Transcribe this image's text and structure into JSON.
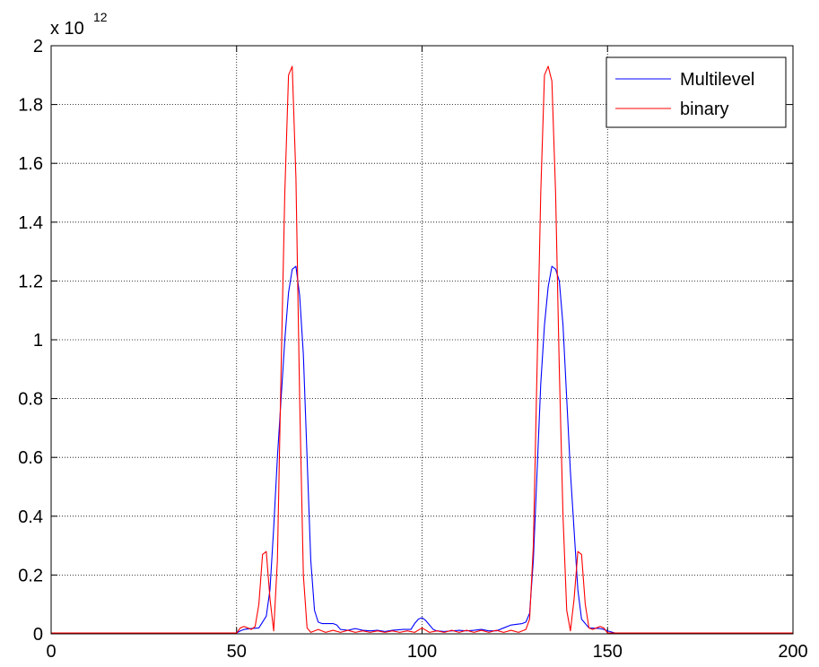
{
  "chart_data": {
    "type": "line",
    "title": "",
    "xlabel": "",
    "ylabel": "",
    "xlim": [
      0,
      200
    ],
    "ylim": [
      0,
      2
    ],
    "y_multiplier": {
      "base": "x 10",
      "exponent": "12"
    },
    "x_ticks": [
      "0",
      "50",
      "100",
      "150",
      "200"
    ],
    "x_tick_values": [
      0,
      50,
      100,
      150,
      200
    ],
    "y_ticks": [
      "0",
      "0.2",
      "0.4",
      "0.6",
      "0.8",
      "1",
      "1.2",
      "1.4",
      "1.6",
      "1.8",
      "2"
    ],
    "y_tick_values": [
      0,
      0.2,
      0.4,
      0.6,
      0.8,
      1,
      1.2,
      1.4,
      1.6,
      1.8,
      2
    ],
    "grid": true,
    "legend_position": "top-right",
    "series": [
      {
        "name": "Multilevel",
        "color": "#0000ff",
        "points": [
          [
            0,
            0.003
          ],
          [
            50,
            0.003
          ],
          [
            51,
            0.01
          ],
          [
            52,
            0.015
          ],
          [
            54,
            0.018
          ],
          [
            56,
            0.02
          ],
          [
            58,
            0.06
          ],
          [
            59,
            0.15
          ],
          [
            60,
            0.36
          ],
          [
            61,
            0.6
          ],
          [
            62,
            0.8
          ],
          [
            63,
            1.0
          ],
          [
            64,
            1.16
          ],
          [
            65,
            1.24
          ],
          [
            66,
            1.25
          ],
          [
            67,
            1.15
          ],
          [
            68,
            0.95
          ],
          [
            69,
            0.6
          ],
          [
            70,
            0.25
          ],
          [
            71,
            0.08
          ],
          [
            72,
            0.04
          ],
          [
            73,
            0.035
          ],
          [
            76,
            0.035
          ],
          [
            77,
            0.03
          ],
          [
            78,
            0.015
          ],
          [
            80,
            0.012
          ],
          [
            82,
            0.018
          ],
          [
            84,
            0.012
          ],
          [
            86,
            0.01
          ],
          [
            88,
            0.012
          ],
          [
            90,
            0.008
          ],
          [
            92,
            0.012
          ],
          [
            95,
            0.015
          ],
          [
            97,
            0.015
          ],
          [
            98,
            0.035
          ],
          [
            99,
            0.05
          ],
          [
            100,
            0.055
          ],
          [
            101,
            0.045
          ],
          [
            102,
            0.03
          ],
          [
            103,
            0.015
          ],
          [
            104,
            0.01
          ],
          [
            106,
            0.008
          ],
          [
            108,
            0.01
          ],
          [
            110,
            0.012
          ],
          [
            112,
            0.01
          ],
          [
            114,
            0.012
          ],
          [
            116,
            0.015
          ],
          [
            118,
            0.01
          ],
          [
            120,
            0.01
          ],
          [
            122,
            0.02
          ],
          [
            124,
            0.03
          ],
          [
            127,
            0.035
          ],
          [
            128,
            0.04
          ],
          [
            129,
            0.07
          ],
          [
            130,
            0.25
          ],
          [
            131,
            0.55
          ],
          [
            132,
            0.85
          ],
          [
            133,
            1.05
          ],
          [
            134,
            1.18
          ],
          [
            135,
            1.25
          ],
          [
            136,
            1.24
          ],
          [
            137,
            1.2
          ],
          [
            138,
            1.05
          ],
          [
            139,
            0.8
          ],
          [
            140,
            0.55
          ],
          [
            141,
            0.35
          ],
          [
            142,
            0.15
          ],
          [
            143,
            0.05
          ],
          [
            145,
            0.02
          ],
          [
            148,
            0.018
          ],
          [
            149,
            0.015
          ],
          [
            150,
            0.01
          ],
          [
            152,
            0.003
          ],
          [
            200,
            0.003
          ]
        ]
      },
      {
        "name": "binary",
        "color": "#ff0000",
        "points": [
          [
            0,
            0.003
          ],
          [
            50,
            0.003
          ],
          [
            51,
            0.02
          ],
          [
            52,
            0.025
          ],
          [
            53,
            0.02
          ],
          [
            54,
            0.015
          ],
          [
            55,
            0.025
          ],
          [
            56,
            0.1
          ],
          [
            57,
            0.27
          ],
          [
            58,
            0.28
          ],
          [
            59,
            0.12
          ],
          [
            60,
            0.01
          ],
          [
            61,
            0.25
          ],
          [
            62,
            0.9
          ],
          [
            63,
            1.5
          ],
          [
            64,
            1.9
          ],
          [
            65,
            1.93
          ],
          [
            66,
            1.55
          ],
          [
            67,
            0.8
          ],
          [
            68,
            0.2
          ],
          [
            69,
            0.02
          ],
          [
            70,
            0.005
          ],
          [
            72,
            0.015
          ],
          [
            74,
            0.005
          ],
          [
            76,
            0.012
          ],
          [
            78,
            0.005
          ],
          [
            80,
            0.012
          ],
          [
            82,
            0.005
          ],
          [
            84,
            0.01
          ],
          [
            86,
            0.005
          ],
          [
            88,
            0.01
          ],
          [
            90,
            0.005
          ],
          [
            92,
            0.01
          ],
          [
            94,
            0.005
          ],
          [
            96,
            0.01
          ],
          [
            98,
            0.005
          ],
          [
            100,
            0.02
          ],
          [
            102,
            0.005
          ],
          [
            104,
            0.01
          ],
          [
            106,
            0.005
          ],
          [
            108,
            0.012
          ],
          [
            110,
            0.005
          ],
          [
            112,
            0.012
          ],
          [
            114,
            0.005
          ],
          [
            116,
            0.012
          ],
          [
            118,
            0.005
          ],
          [
            120,
            0.012
          ],
          [
            122,
            0.005
          ],
          [
            124,
            0.012
          ],
          [
            126,
            0.005
          ],
          [
            128,
            0.015
          ],
          [
            129,
            0.05
          ],
          [
            130,
            0.3
          ],
          [
            131,
            0.9
          ],
          [
            132,
            1.5
          ],
          [
            133,
            1.9
          ],
          [
            134,
            1.93
          ],
          [
            135,
            1.88
          ],
          [
            136,
            1.5
          ],
          [
            137,
            0.9
          ],
          [
            138,
            0.4
          ],
          [
            139,
            0.08
          ],
          [
            140,
            0.01
          ],
          [
            141,
            0.12
          ],
          [
            142,
            0.28
          ],
          [
            143,
            0.27
          ],
          [
            144,
            0.1
          ],
          [
            145,
            0.02
          ],
          [
            146,
            0.015
          ],
          [
            147,
            0.02
          ],
          [
            148,
            0.025
          ],
          [
            149,
            0.02
          ],
          [
            150,
            0.003
          ],
          [
            200,
            0.003
          ]
        ]
      }
    ]
  }
}
